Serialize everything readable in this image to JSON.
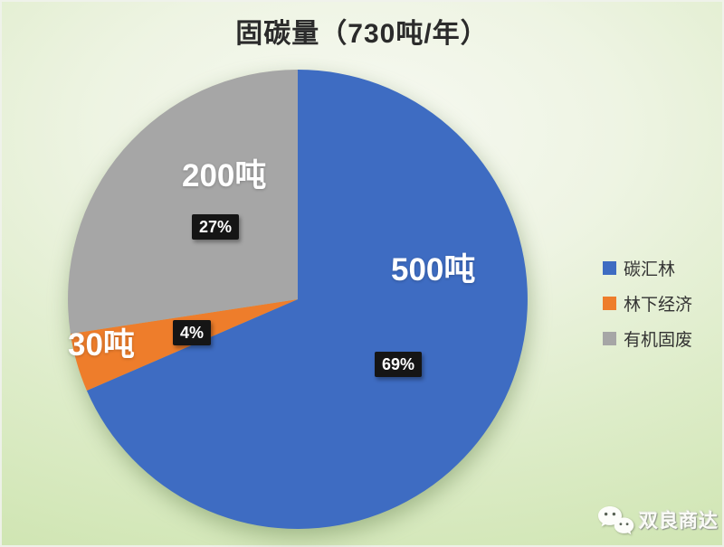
{
  "page": {
    "title": "固碳量（730吨/年）"
  },
  "chart_data": {
    "type": "pie",
    "title": "固碳量（730吨/年）",
    "unit": "吨",
    "total": 730,
    "total_label": "730吨/年",
    "start_angle_deg": 0,
    "direction": "clockwise",
    "legend_position": "right",
    "slices": [
      {
        "label": "碳汇林",
        "value": 500,
        "value_label": "500吨",
        "percent_label": "69%",
        "color": "#3E6CC2"
      },
      {
        "label": "林下经济",
        "value": 30,
        "value_label": "30吨",
        "percent_label": "4%",
        "color": "#EE7D2B"
      },
      {
        "label": "有机固废",
        "value": 200,
        "value_label": "200吨",
        "percent_label": "27%",
        "color": "#A6A6A6"
      }
    ]
  },
  "watermark": {
    "text": "双良商达",
    "icon": "wechat-logo-icon"
  },
  "colors": {
    "badge_bg": "#151515",
    "badge_text": "#ffffff",
    "title_text": "#2b2b2b",
    "legend_text": "#333333",
    "background_edge": "#cbe3ab",
    "background_center": "#f7f9f2"
  }
}
